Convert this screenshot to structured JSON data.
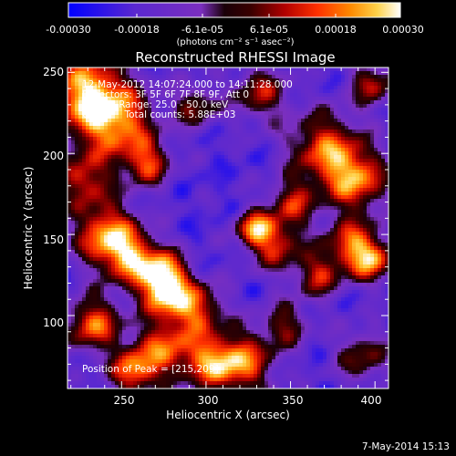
{
  "chart_data": {
    "type": "heatmap",
    "title": "Reconstructed RHESSI Image",
    "xlabel": "Heliocentric X (arcsec)",
    "ylabel": "Heliocentric Y (arcsec)",
    "xlim": [
      218,
      408
    ],
    "ylim": [
      55,
      253
    ],
    "x_ticks": [
      "250",
      "300",
      "350",
      "400"
    ],
    "y_ticks": [
      "100",
      "150",
      "200",
      "250"
    ],
    "colorbar": {
      "label": "(photons cm⁻² s⁻¹ asec⁻²)",
      "range": [
        -0.0003,
        0.0003
      ],
      "tick_labels_bottom": [
        "-0.00030",
        "-0.00018",
        "0.00018",
        "0.00030"
      ],
      "tick_labels_top": [
        "-6.1e-05",
        "6.1e-05"
      ],
      "colors": [
        "#0000ff",
        "#5a28d0",
        "#7b2fbf",
        "#2a0000",
        "#9a0000",
        "#ff2a00",
        "#ff8000",
        "#ffd24a",
        "#ffffff"
      ]
    },
    "annotations": {
      "time": "12-May-2012 14:07:24.000 to 14:11:28.000",
      "detectors": "Detectors: 3F 5F 6F 7F 8F 9F, Att 0",
      "energy": "Energy Range: 25.0 - 50.0 keV",
      "clean": "Clean     Total counts: 5.88E+03",
      "peak": "Position of Peak = [215,209]"
    },
    "footer_date": "7-May-2014 15:13"
  }
}
